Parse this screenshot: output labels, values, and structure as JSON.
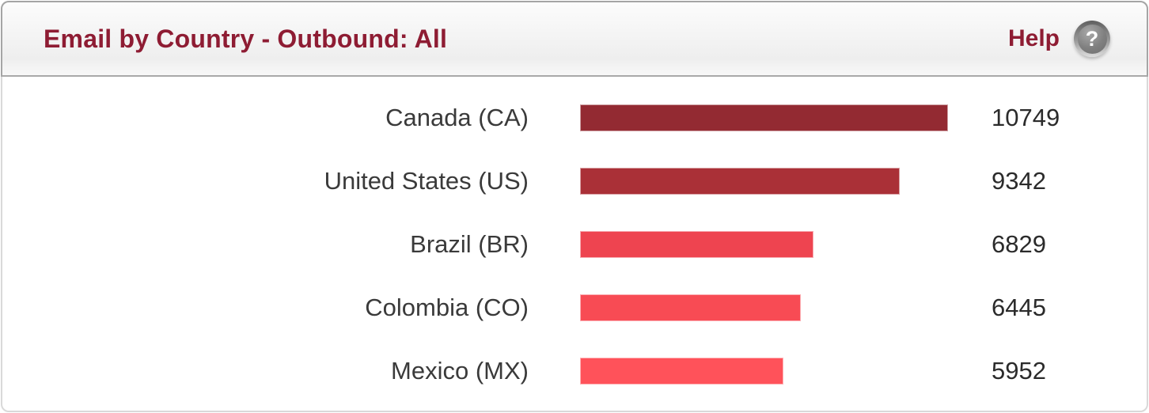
{
  "widget": {
    "title": "Email by Country - Outbound: All",
    "help_label": "Help",
    "help_icon_glyph": "?",
    "title_color": "#8e1c33",
    "header_border_color": "#a5a5a5",
    "body_border_color": "#d9d9d9"
  },
  "chart_data": {
    "type": "bar",
    "orientation": "horizontal",
    "title": "Email by Country - Outbound: All",
    "categories": [
      "Canada (CA)",
      "United States (US)",
      "Brazil (BR)",
      "Colombia (CO)",
      "Mexico (MX)"
    ],
    "values": [
      10749,
      9342,
      6829,
      6445,
      5952
    ],
    "max_value": 10749,
    "xlim": [
      0,
      10749
    ],
    "value_labels_shown": true,
    "grid": false,
    "legend": false,
    "bar_colors": [
      "#932a32",
      "#aa3037",
      "#ee4450",
      "#f84b54",
      "#ff525a"
    ]
  }
}
